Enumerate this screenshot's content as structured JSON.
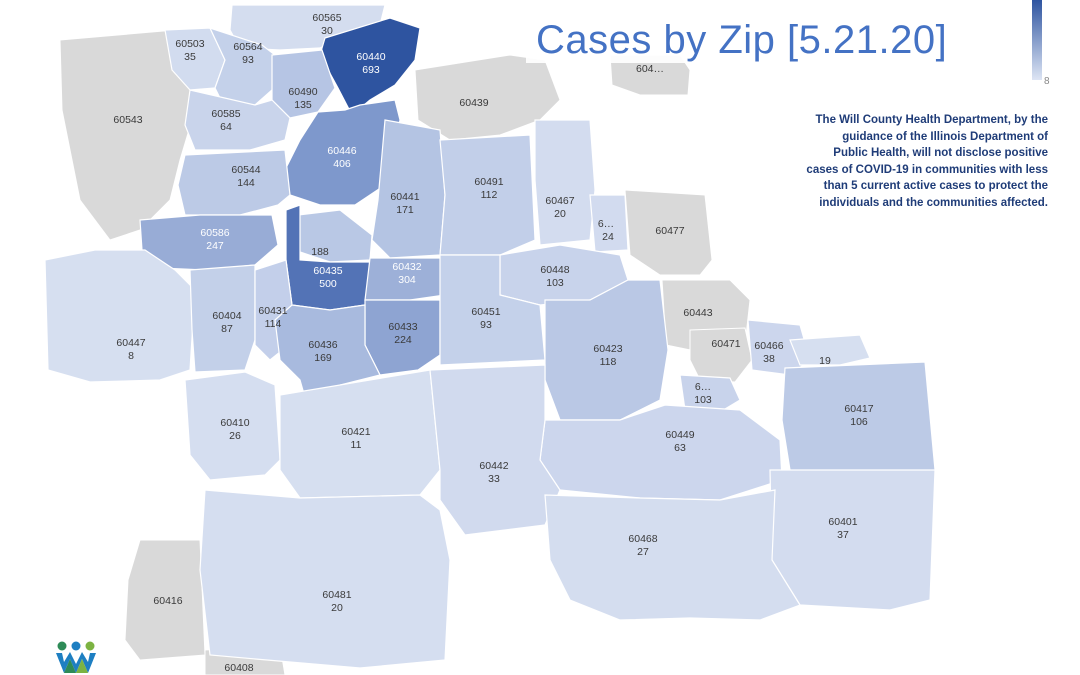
{
  "title": "Cases by Zip [5.21.20]",
  "page_number": "8",
  "note": "The Will County Health Department, by the guidance of the Illinois Department of Public Health, will not disclose positive cases of COVID-19 in communities with less than 5 current active cases to protect the individuals and the communities affected.",
  "colors": {
    "title": "#4472c4",
    "max": "#2e54a0",
    "min": "#dde5f4",
    "no_data": "#d9d9d9",
    "note": "#1f3c78"
  },
  "zips": [
    {
      "zip": "60565",
      "cases": "30"
    },
    {
      "zip": "60503",
      "cases": "35"
    },
    {
      "zip": "60564",
      "cases": "93"
    },
    {
      "zip": "60440",
      "cases": "693"
    },
    {
      "zip": "60490",
      "cases": "135"
    },
    {
      "zip": "60543",
      "cases": ""
    },
    {
      "zip": "60585",
      "cases": "64"
    },
    {
      "zip": "60439",
      "cases": ""
    },
    {
      "zip": "604…",
      "cases": ""
    },
    {
      "zip": "60446",
      "cases": "406"
    },
    {
      "zip": "60544",
      "cases": "144"
    },
    {
      "zip": "60441",
      "cases": "171"
    },
    {
      "zip": "60491",
      "cases": "112"
    },
    {
      "zip": "60467",
      "cases": "20"
    },
    {
      "zip": "6…",
      "cases": "24"
    },
    {
      "zip": "60477",
      "cases": ""
    },
    {
      "zip": "60586",
      "cases": "247"
    },
    {
      "zip": "",
      "cases": "188"
    },
    {
      "zip": "60435",
      "cases": "500"
    },
    {
      "zip": "60432",
      "cases": "304"
    },
    {
      "zip": "60448",
      "cases": "103"
    },
    {
      "zip": "60447",
      "cases": "8"
    },
    {
      "zip": "60404",
      "cases": "87"
    },
    {
      "zip": "60431",
      "cases": "114"
    },
    {
      "zip": "60433",
      "cases": "224"
    },
    {
      "zip": "60451",
      "cases": "93"
    },
    {
      "zip": "60443",
      "cases": ""
    },
    {
      "zip": "60436",
      "cases": "169"
    },
    {
      "zip": "60423",
      "cases": "118"
    },
    {
      "zip": "60471",
      "cases": ""
    },
    {
      "zip": "60466",
      "cases": "38"
    },
    {
      "zip": "",
      "cases": "19"
    },
    {
      "zip": "6…",
      "cases": "103"
    },
    {
      "zip": "60410",
      "cases": "26"
    },
    {
      "zip": "60421",
      "cases": "11"
    },
    {
      "zip": "60417",
      "cases": "106"
    },
    {
      "zip": "60449",
      "cases": "63"
    },
    {
      "zip": "60442",
      "cases": "33"
    },
    {
      "zip": "60401",
      "cases": "37"
    },
    {
      "zip": "60468",
      "cases": "27"
    },
    {
      "zip": "60416",
      "cases": ""
    },
    {
      "zip": "60481",
      "cases": "20"
    },
    {
      "zip": "60408",
      "cases": ""
    }
  ]
}
